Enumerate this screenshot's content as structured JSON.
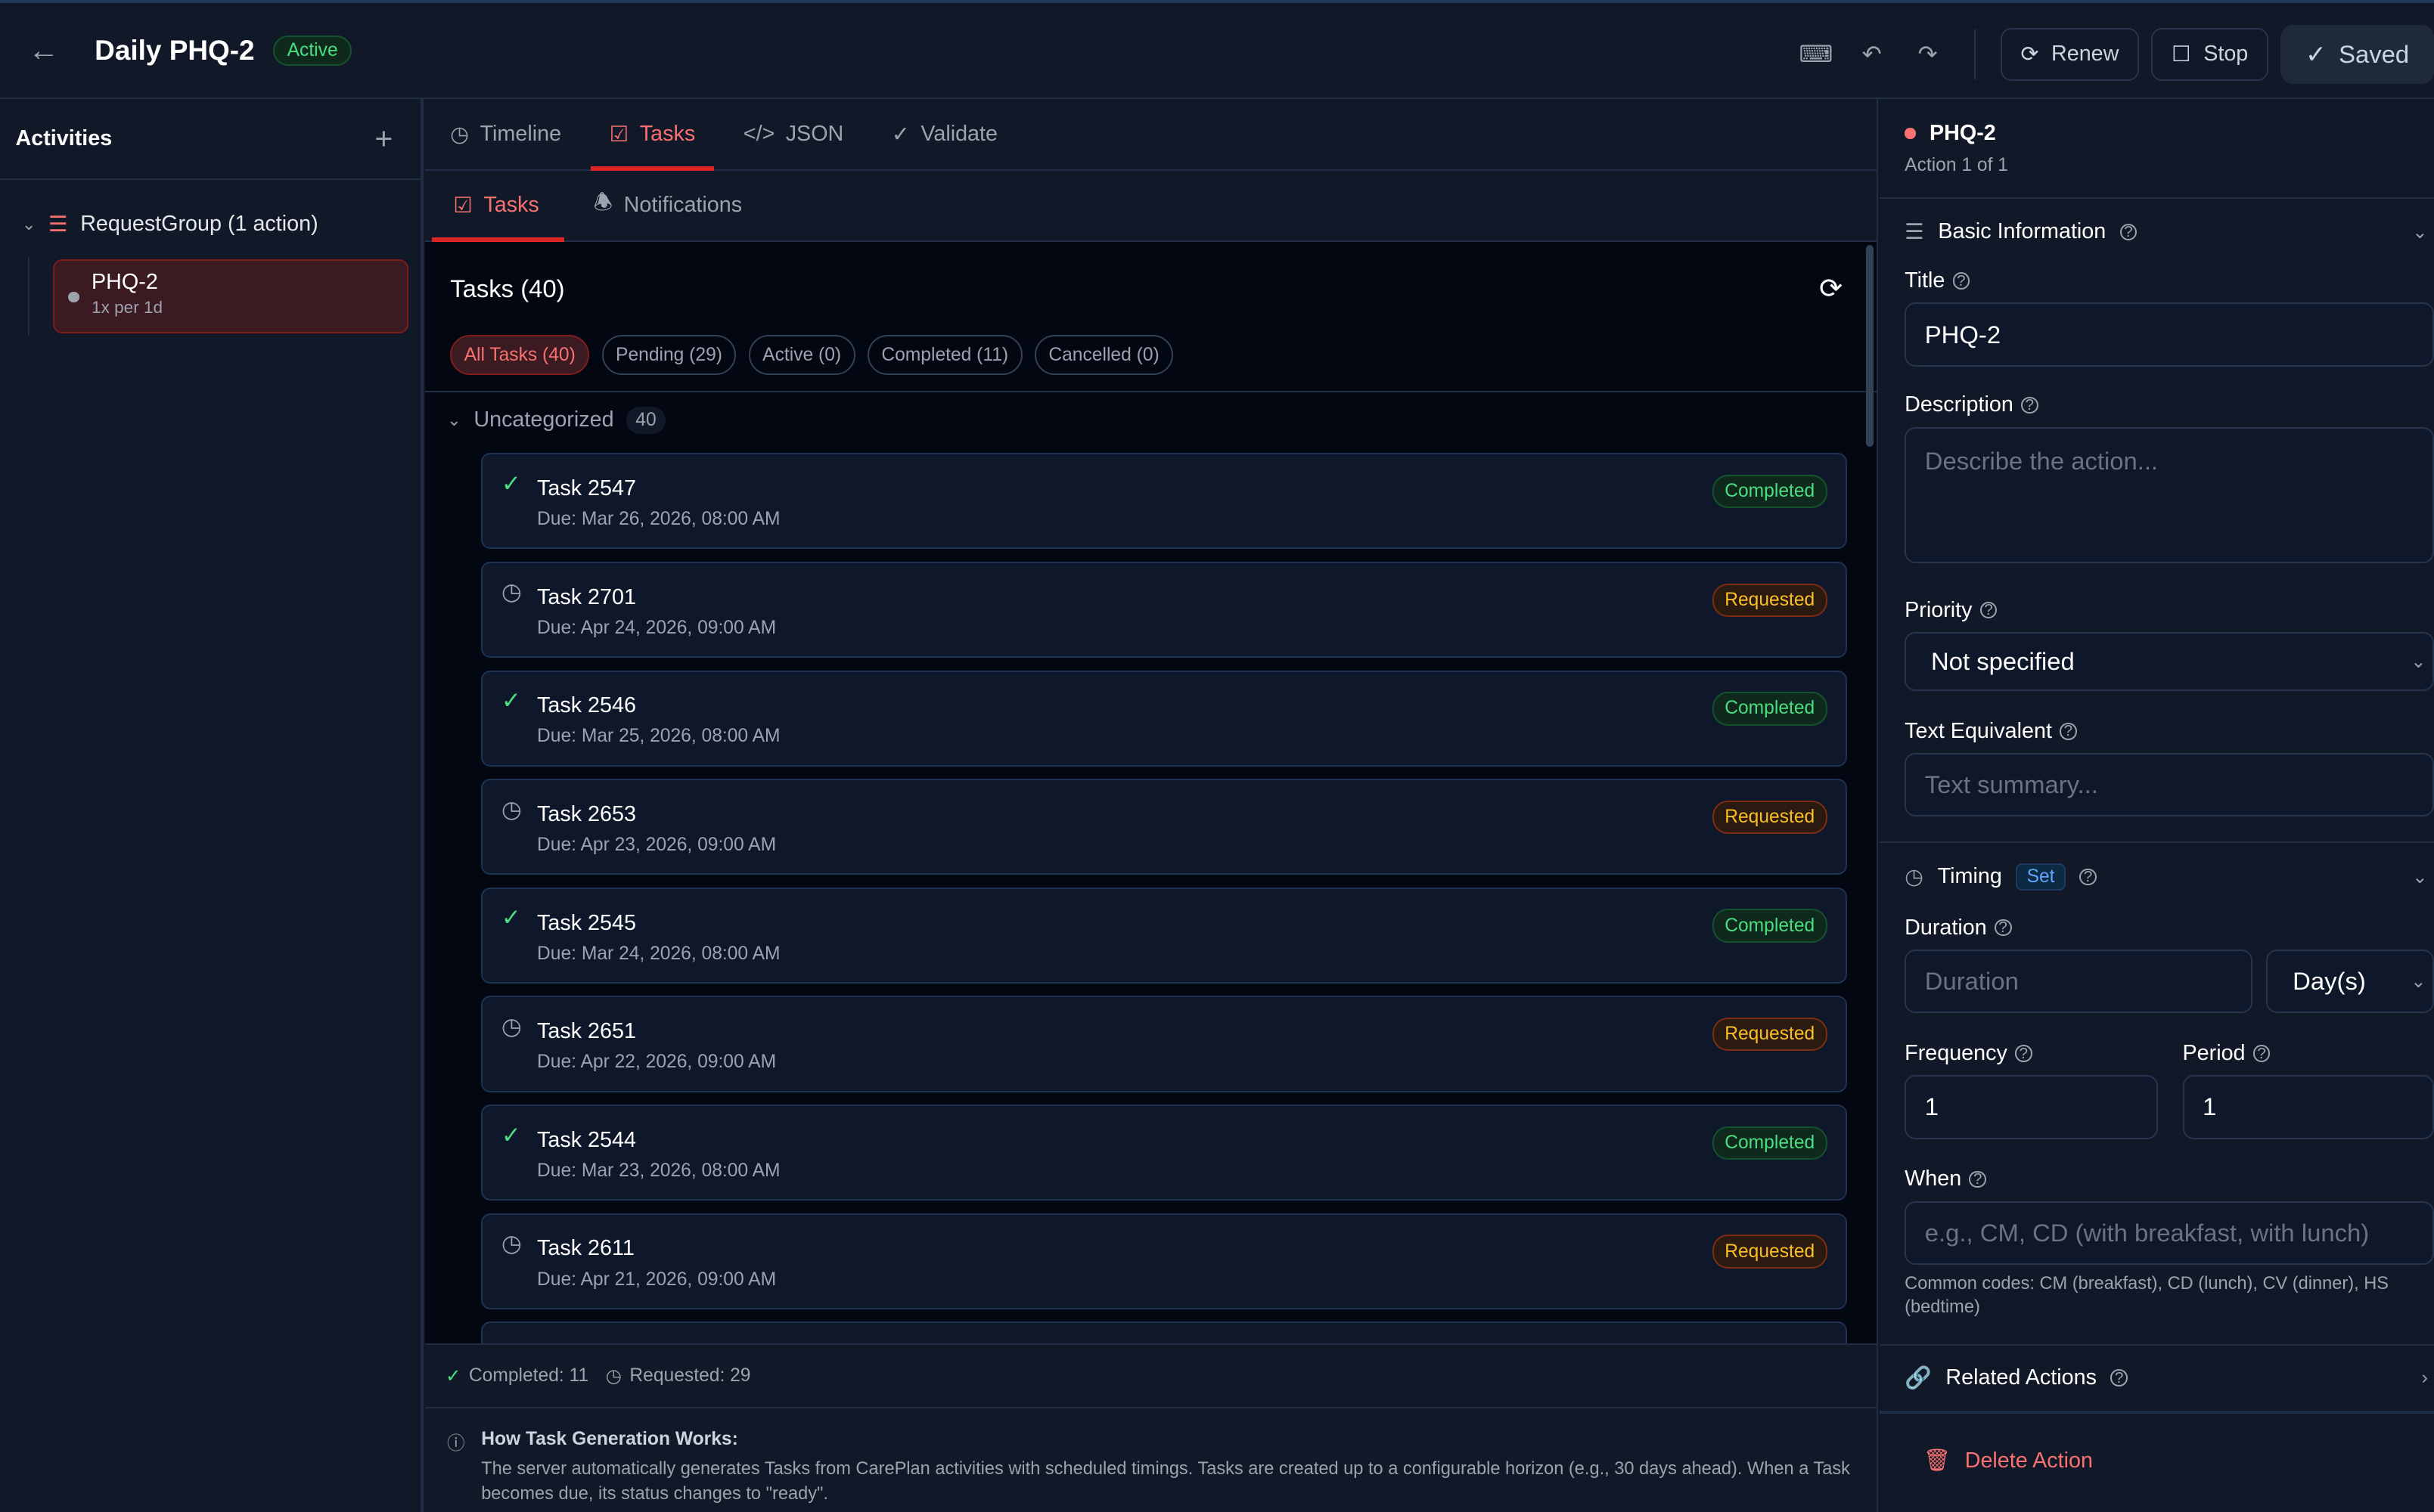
{
  "header": {
    "title": "Daily PHQ-2",
    "status": "Active",
    "renew": "Renew",
    "stop": "Stop",
    "saved": "Saved"
  },
  "sidebar": {
    "title": "Activities",
    "group": "RequestGroup (1 action)",
    "items": [
      {
        "name": "PHQ-2",
        "schedule": "1x per 1d"
      }
    ]
  },
  "tabs": [
    {
      "label": "Timeline",
      "icon": "clock-icon"
    },
    {
      "label": "Tasks",
      "icon": "checkbox-icon",
      "active": true
    },
    {
      "label": "JSON",
      "icon": "code-icon"
    },
    {
      "label": "Validate",
      "icon": "check-circle-icon"
    }
  ],
  "subtabs": [
    {
      "label": "Tasks",
      "active": true
    },
    {
      "label": "Notifications"
    }
  ],
  "tasks": {
    "heading": "Tasks (40)",
    "filters": [
      "All Tasks (40)",
      "Pending (29)",
      "Active (0)",
      "Completed (11)",
      "Cancelled (0)"
    ],
    "category": "Uncategorized",
    "category_count": "40",
    "items": [
      {
        "name": "Task 2547",
        "due": "Due: Mar 26, 2026, 08:00 AM",
        "status": "Completed"
      },
      {
        "name": "Task 2701",
        "due": "Due: Apr 24, 2026, 09:00 AM",
        "status": "Requested"
      },
      {
        "name": "Task 2546",
        "due": "Due: Mar 25, 2026, 08:00 AM",
        "status": "Completed"
      },
      {
        "name": "Task 2653",
        "due": "Due: Apr 23, 2026, 09:00 AM",
        "status": "Requested"
      },
      {
        "name": "Task 2545",
        "due": "Due: Mar 24, 2026, 08:00 AM",
        "status": "Completed"
      },
      {
        "name": "Task 2651",
        "due": "Due: Apr 22, 2026, 09:00 AM",
        "status": "Requested"
      },
      {
        "name": "Task 2544",
        "due": "Due: Mar 23, 2026, 08:00 AM",
        "status": "Completed"
      },
      {
        "name": "Task 2611",
        "due": "Due: Apr 21, 2026, 09:00 AM",
        "status": "Requested"
      }
    ],
    "completed_summary": "Completed: 11",
    "requested_summary": "Requested: 29",
    "info_title": "How Task Generation Works:",
    "info_text": "The server automatically generates Tasks from CarePlan activities with scheduled timings. Tasks are created up to a configurable horizon (e.g., 30 days ahead). When a Task becomes due, its status changes to \"ready\"."
  },
  "panel": {
    "name": "PHQ-2",
    "subtitle": "Action 1 of 1",
    "basic": "Basic Information",
    "title_label": "Title",
    "title_value": "PHQ-2",
    "desc_label": "Description",
    "desc_ph": "Describe the action...",
    "priority_label": "Priority",
    "priority_value": "Not specified",
    "text_label": "Text Equivalent",
    "text_ph": "Text summary...",
    "timing": "Timing",
    "timing_badge": "Set",
    "duration_label": "Duration",
    "duration_ph": "Duration",
    "duration_unit": "Day(s)",
    "freq_label": "Frequency",
    "freq_value": "1",
    "period_label": "Period",
    "period_value": "1",
    "when_label": "When",
    "when_ph": "e.g., CM, CD (with breakfast, with lunch)",
    "when_hint": "Common codes: CM (breakfast), CD (lunch), CV (dinner), HS (bedtime)",
    "related": "Related Actions",
    "delete": "Delete Action"
  },
  "colors": {
    "accent": "#ef4444",
    "completed": "#4ade80",
    "requested": "#fbbf24"
  }
}
